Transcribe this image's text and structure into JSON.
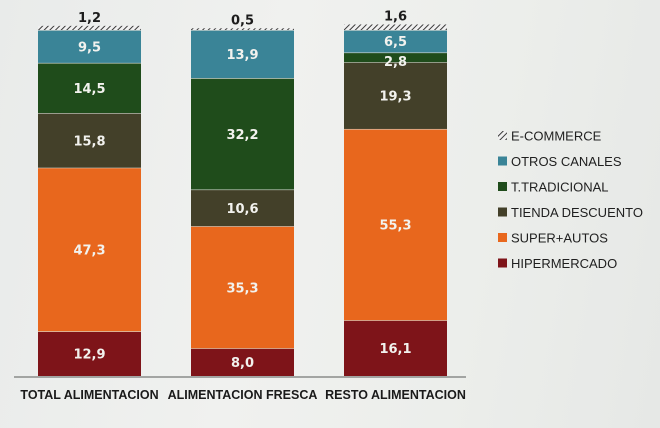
{
  "chart_data": {
    "type": "bar",
    "stacked": true,
    "title": "",
    "xlabel": "",
    "ylabel": "",
    "ylim": [
      0,
      100
    ],
    "grid": false,
    "legend_position": "right",
    "categories": [
      "TOTAL ALIMENTACION",
      "ALIMENTACION FRESCA",
      "RESTO ALIMENTACION"
    ],
    "series": [
      {
        "name": "HIPERMERCADO",
        "color": "#7e1419",
        "values": [
          12.9,
          8.0,
          16.1
        ],
        "labels": [
          "12,9",
          "8,0",
          "16,1"
        ]
      },
      {
        "name": "SUPER+AUTOS",
        "color": "#e8671d",
        "values": [
          47.3,
          35.3,
          55.3
        ],
        "labels": [
          "47,3",
          "35,3",
          "55,3"
        ]
      },
      {
        "name": "TIENDA DESCUENTO",
        "color": "#434029",
        "values": [
          15.8,
          10.6,
          19.3
        ],
        "labels": [
          "15,8",
          "10,6",
          "19,3"
        ]
      },
      {
        "name": "T.TRADICIONAL",
        "color": "#1f4c1b",
        "values": [
          14.5,
          32.2,
          2.8
        ],
        "labels": [
          "14,5",
          "32,2",
          "2,8"
        ]
      },
      {
        "name": "OTROS CANALES",
        "color": "#3a8497",
        "values": [
          9.5,
          13.9,
          6.5
        ],
        "labels": [
          "9,5",
          "13,9",
          "6,5"
        ]
      },
      {
        "name": "E-COMMERCE",
        "color": "#555555",
        "pattern": "hatched",
        "values": [
          1.2,
          0.5,
          1.6
        ],
        "labels": [
          "1,2",
          "0,5",
          "1,6"
        ]
      }
    ],
    "legend_order": [
      "E-COMMERCE",
      "OTROS CANALES",
      "T.TRADICIONAL",
      "TIENDA DESCUENTO",
      "SUPER+AUTOS",
      "HIPERMERCADO"
    ]
  }
}
